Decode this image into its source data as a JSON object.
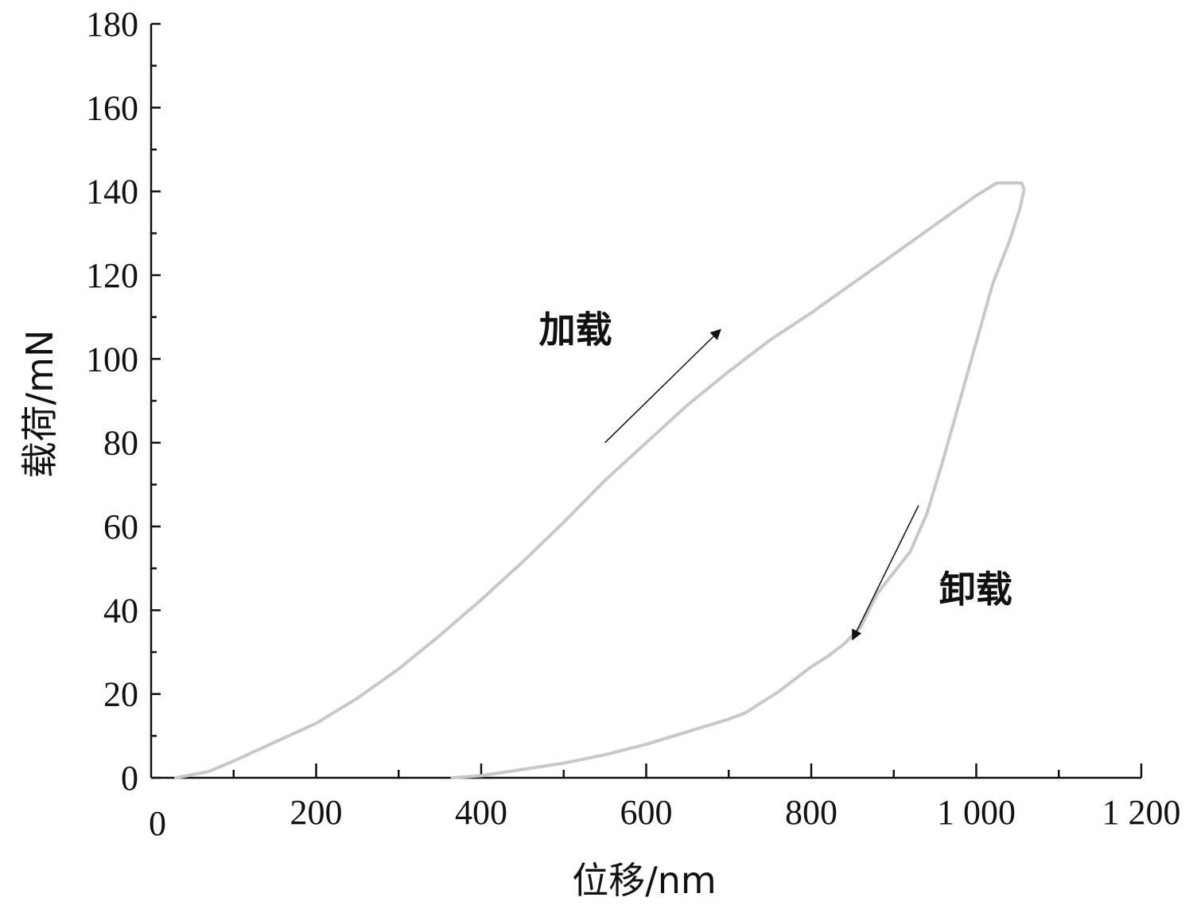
{
  "chart_data": {
    "type": "line",
    "xlabel": "位移/nm",
    "ylabel": "载荷/mN",
    "xlim": [
      0,
      1200
    ],
    "ylim": [
      0,
      180
    ],
    "xticks": [
      0,
      200,
      400,
      600,
      800,
      1000,
      1200
    ],
    "xtick_labels": [
      "0",
      "200",
      "400",
      "600",
      "800",
      "1 000",
      "1 200"
    ],
    "yticks": [
      0,
      20,
      40,
      60,
      80,
      100,
      120,
      140,
      160,
      180
    ],
    "ytick_labels": [
      "0",
      "20",
      "40",
      "60",
      "80",
      "100",
      "120",
      "140",
      "160",
      "180"
    ],
    "grid": false,
    "series": [
      {
        "color": "#c8c8c8",
        "x": [
          30,
          70,
          100,
          150,
          200,
          250,
          300,
          350,
          400,
          450,
          500,
          550,
          600,
          650,
          700,
          750,
          800,
          850,
          900,
          950,
          1000,
          1025,
          1055,
          1058,
          1053,
          1040,
          1020,
          1000,
          980,
          960,
          940,
          920,
          900,
          880,
          860,
          840,
          820,
          800,
          780,
          760,
          740,
          720,
          700,
          650,
          600,
          550,
          500,
          450,
          400,
          365
        ],
        "y": [
          0,
          1.5,
          4,
          8.5,
          13,
          19,
          26,
          34,
          42.5,
          51.5,
          61,
          71,
          80,
          89,
          97,
          104.5,
          111,
          118,
          125,
          132,
          139,
          142,
          142,
          140.5,
          136,
          128,
          118,
          104,
          90,
          76,
          63,
          54,
          49,
          44,
          36,
          32,
          29,
          26.5,
          23.5,
          20.5,
          18,
          15.5,
          14,
          11,
          8,
          5.5,
          3.5,
          2,
          0.5,
          0
        ]
      }
    ],
    "annotations": [
      {
        "text": "加载",
        "arrow_from": [
          550,
          80
        ],
        "arrow_to": [
          690,
          107
        ]
      },
      {
        "text": "卸载",
        "arrow_from": [
          930,
          65
        ],
        "arrow_to": [
          850,
          33
        ]
      }
    ]
  }
}
